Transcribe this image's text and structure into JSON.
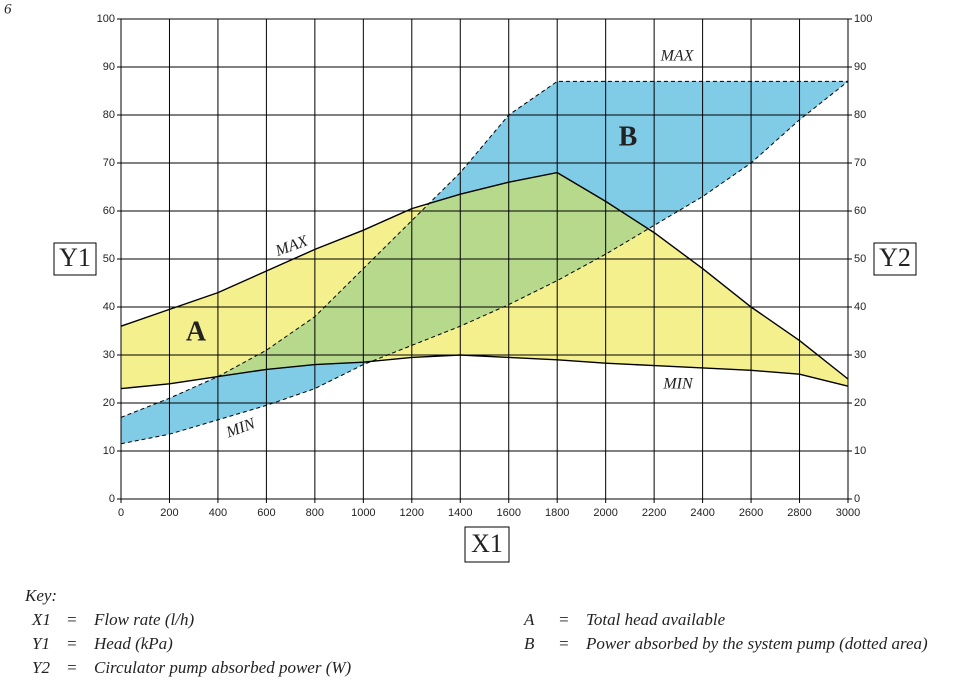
{
  "page_number": "6",
  "chart_data": {
    "type": "band",
    "x_label": "X1",
    "y_label": "Y1",
    "y2_label": "Y2",
    "x": [
      0,
      200,
      400,
      600,
      800,
      1000,
      1200,
      1400,
      1600,
      1800,
      2000,
      2200,
      2400,
      2600,
      2800,
      3000
    ],
    "xlim": [
      0,
      3000
    ],
    "xticks": [
      0,
      200,
      400,
      600,
      800,
      1000,
      1200,
      1400,
      1600,
      1800,
      2000,
      2200,
      2400,
      2600,
      2800,
      3000
    ],
    "ylim": [
      0,
      100
    ],
    "yticks": [
      0,
      10,
      20,
      30,
      40,
      50,
      60,
      70,
      80,
      90,
      100
    ],
    "y2lim": [
      0,
      100
    ],
    "y2ticks": [
      0,
      10,
      20,
      30,
      40,
      50,
      60,
      70,
      80,
      90,
      100
    ],
    "grid": true,
    "overlap_color": "#b7d98b",
    "series": [
      {
        "name": "A",
        "color": "#f5f08e",
        "axis": "y",
        "dashed": false,
        "max_label": "MAX",
        "min_label": "MIN",
        "max": [
          36,
          39.5,
          43,
          47.5,
          52,
          56,
          60.5,
          63.5,
          66,
          68,
          62,
          55.5,
          48,
          40,
          33,
          25
        ],
        "min": [
          23,
          24,
          25.5,
          27,
          28,
          28.5,
          29.5,
          30,
          29.5,
          29,
          28.3,
          27.8,
          27.3,
          26.8,
          26,
          23.5
        ]
      },
      {
        "name": "B",
        "color": "#80cbe6",
        "axis": "y2",
        "dashed": true,
        "max_label": "MAX",
        "min_label": "MIN",
        "max": [
          17,
          21,
          25.5,
          31,
          38,
          48,
          58,
          68,
          80,
          87,
          87,
          87,
          87,
          87,
          87,
          87
        ],
        "min": [
          11.5,
          13.5,
          16.5,
          19.5,
          23,
          28,
          32,
          36,
          40.5,
          45.5,
          51,
          57,
          63,
          70,
          79,
          87
        ]
      }
    ]
  },
  "key": {
    "title": "Key:",
    "items": [
      {
        "symbol": "X1",
        "sep": "=",
        "text": "Flow rate (l/h)"
      },
      {
        "symbol": "Y1",
        "sep": "=",
        "text": "Head (kPa)"
      },
      {
        "symbol": "Y2",
        "sep": "=",
        "text": "Circulator pump absorbed power (W)"
      },
      {
        "symbol": "A",
        "sep": "=",
        "text": "Total head available"
      },
      {
        "symbol": "B",
        "sep": "=",
        "text": "Power absorbed by the system pump (dotted area)"
      }
    ]
  }
}
